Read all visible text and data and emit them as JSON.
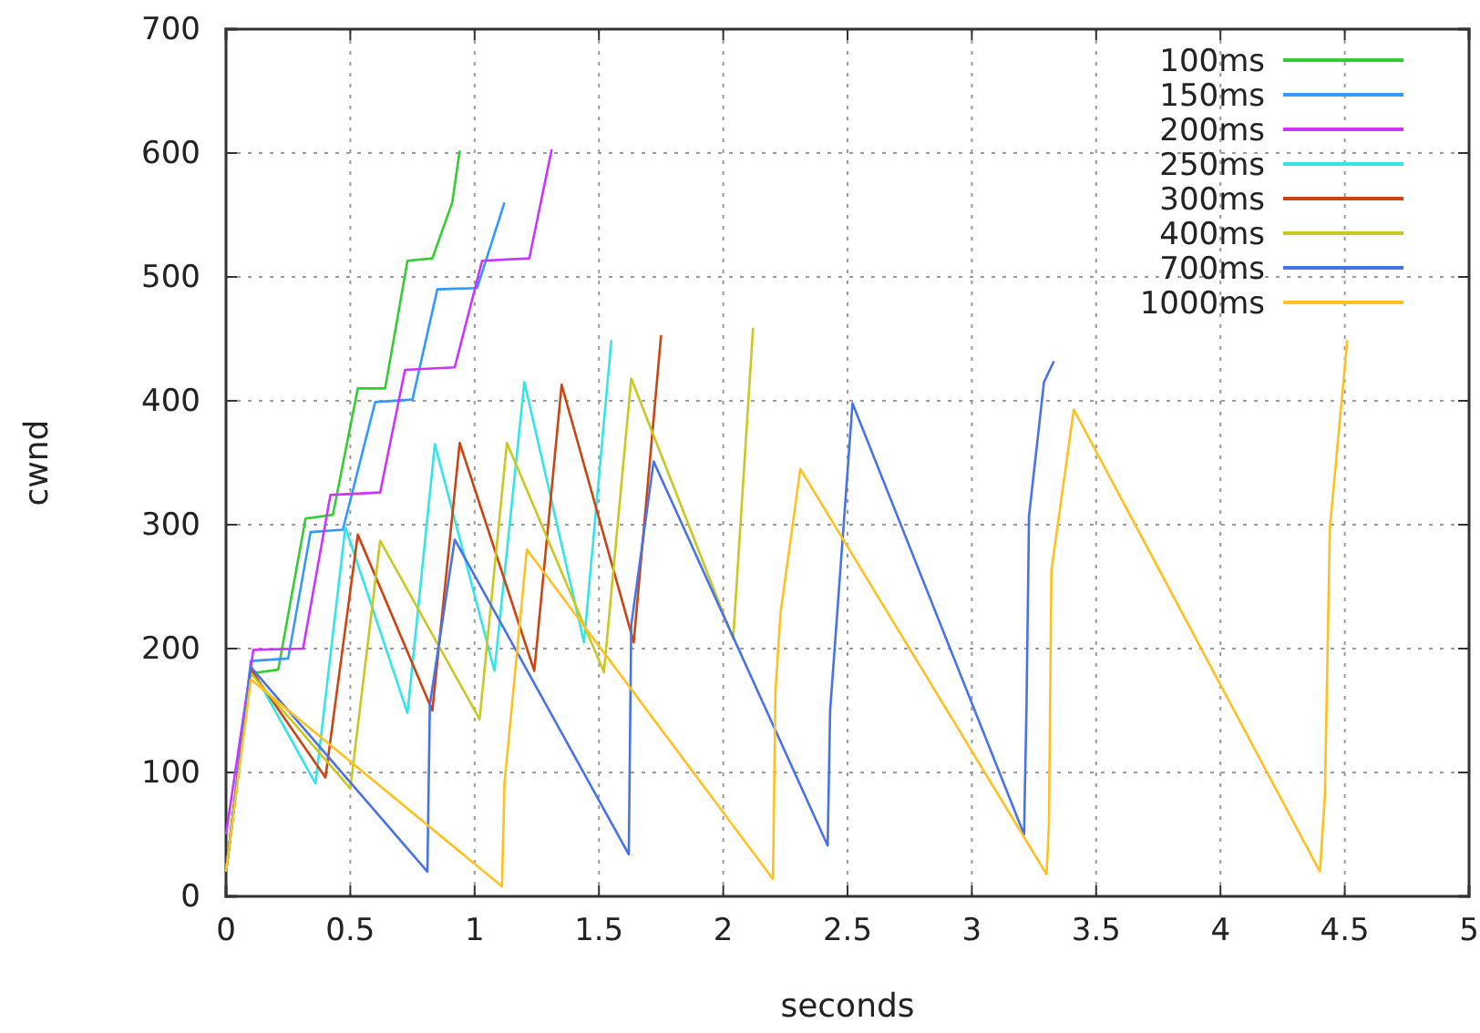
{
  "chart_data": {
    "type": "line",
    "xlabel": "seconds",
    "ylabel": "cwnd",
    "xlim": [
      0,
      5
    ],
    "xticks": [
      0,
      0.5,
      1,
      1.5,
      2,
      2.5,
      3,
      3.5,
      4,
      4.5,
      5
    ],
    "ylim": [
      0,
      700
    ],
    "yticks": [
      0,
      100,
      200,
      300,
      400,
      500,
      600,
      700
    ],
    "grid": true,
    "legend": "top right",
    "line_style": "solid",
    "series": [
      {
        "name": "100ms",
        "color": "#33cc33",
        "x": [
          0,
          0.1,
          0.21,
          0.32,
          0.43,
          0.53,
          0.64,
          0.73,
          0.83,
          0.91,
          0.94
        ],
        "values": [
          20,
          180,
          183,
          305,
          308,
          410,
          410,
          513,
          515,
          560,
          602
        ]
      },
      {
        "name": "150ms",
        "color": "#3399ff",
        "x": [
          0.01,
          0.1,
          0.25,
          0.34,
          0.47,
          0.6,
          0.75,
          0.85,
          1.01,
          1.12
        ],
        "values": [
          35,
          190,
          192,
          294,
          296,
          399,
          401,
          490,
          491,
          560
        ]
      },
      {
        "name": "200ms",
        "color": "#cc33ff",
        "x": [
          0,
          0.11,
          0.31,
          0.42,
          0.62,
          0.72,
          0.92,
          1.03,
          1.22,
          1.31
        ],
        "values": [
          50,
          199,
          200,
          324,
          326,
          425,
          427,
          513,
          515,
          603
        ]
      },
      {
        "name": "250ms",
        "color": "#33e6e6",
        "x": [
          0,
          0.1,
          0.36,
          0.48,
          0.73,
          0.84,
          1.08,
          1.2,
          1.44,
          1.55
        ],
        "values": [
          20,
          185,
          91,
          298,
          148,
          365,
          182,
          415,
          205,
          449
        ]
      },
      {
        "name": "300ms",
        "color": "#cc4411",
        "x": [
          0,
          0.1,
          0.4,
          0.53,
          0.83,
          0.94,
          1.24,
          1.35,
          1.64,
          1.75
        ],
        "values": [
          20,
          183,
          96,
          292,
          150,
          366,
          182,
          413,
          205,
          453
        ]
      },
      {
        "name": "400ms",
        "color": "#c8c822",
        "x": [
          0,
          0.1,
          0.5,
          0.62,
          1.02,
          1.13,
          1.52,
          1.63,
          2.04,
          2.12
        ],
        "values": [
          20,
          180,
          87,
          287,
          143,
          366,
          181,
          418,
          208,
          459
        ]
      },
      {
        "name": "700ms",
        "color": "#4a72e8",
        "x": [
          0,
          0.1,
          0.81,
          0.82,
          0.92,
          1.62,
          1.63,
          1.72,
          2.42,
          2.43,
          2.52,
          3.21,
          3.22,
          3.23,
          3.29,
          3.33
        ],
        "values": [
          20,
          185,
          20,
          155,
          288,
          34,
          219,
          351,
          41,
          150,
          398,
          50,
          155,
          307,
          415,
          432
        ]
      },
      {
        "name": "1000ms",
        "color": "#ffc022",
        "x": [
          0,
          0.1,
          1.11,
          1.12,
          1.21,
          2.2,
          2.21,
          2.23,
          2.31,
          3.3,
          3.31,
          3.32,
          3.41,
          4.4,
          4.42,
          4.44,
          4.51
        ],
        "values": [
          20,
          175,
          8,
          91,
          280,
          14,
          165,
          228,
          345,
          18,
          57,
          263,
          393,
          20,
          81,
          297,
          449
        ]
      }
    ]
  }
}
